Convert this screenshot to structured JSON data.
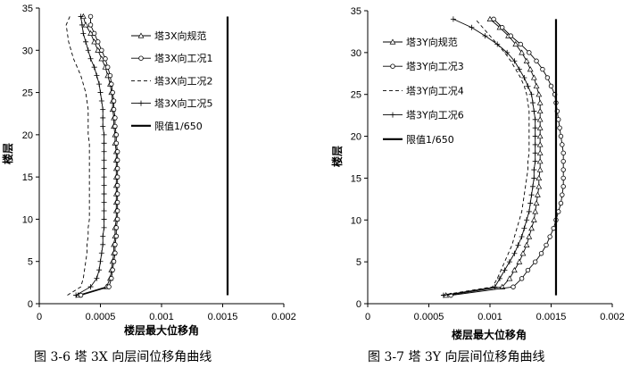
{
  "chart_data": [
    {
      "type": "line",
      "caption": "图 3-6    塔 3X 向层间位移角曲线",
      "xlabel": "楼层最大位移角",
      "ylabel": "楼层",
      "xlim": [
        0,
        0.002
      ],
      "ylim": [
        0,
        35
      ],
      "xticks": [
        "0",
        "0.0005",
        "0.001",
        "0.0015",
        "0.002"
      ],
      "yticks": [
        "0",
        "5",
        "10",
        "15",
        "20",
        "25",
        "30",
        "35"
      ],
      "grid": false,
      "legend_position": "top-right",
      "floors": [
        1,
        2,
        3,
        4,
        5,
        6,
        7,
        8,
        9,
        10,
        11,
        12,
        13,
        14,
        15,
        16,
        17,
        18,
        19,
        20,
        21,
        22,
        23,
        24,
        25,
        26,
        27,
        28,
        29,
        30,
        31,
        32,
        33,
        34
      ],
      "series": [
        {
          "name": "塔3X向规范",
          "marker": "triangle",
          "dash": "solid",
          "values": [
            0.00032,
            0.00055,
            0.00058,
            0.00059,
            0.0006,
            0.00061,
            0.00061,
            0.00062,
            0.00062,
            0.00063,
            0.00063,
            0.00063,
            0.00063,
            0.00063,
            0.00063,
            0.00063,
            0.00063,
            0.00063,
            0.00062,
            0.00062,
            0.00061,
            0.00061,
            0.0006,
            0.0006,
            0.00059,
            0.00058,
            0.00056,
            0.00054,
            0.00051,
            0.00048,
            0.00045,
            0.00042,
            0.00038,
            0.00036
          ]
        },
        {
          "name": "塔3X向工况1",
          "marker": "circle",
          "dash": "solid",
          "values": [
            0.00034,
            0.00057,
            0.00059,
            0.0006,
            0.00061,
            0.00062,
            0.00062,
            0.00063,
            0.00063,
            0.00064,
            0.00064,
            0.00064,
            0.00064,
            0.00064,
            0.00064,
            0.00064,
            0.00064,
            0.00064,
            0.00063,
            0.00063,
            0.00062,
            0.00062,
            0.00061,
            0.00061,
            0.0006,
            0.00059,
            0.00058,
            0.00056,
            0.00054,
            0.00051,
            0.00048,
            0.00045,
            0.00042,
            0.00042
          ]
        },
        {
          "name": "塔3X向工况2",
          "marker": "none",
          "dash": "dashed",
          "values": [
            0.00023,
            0.00034,
            0.00036,
            0.00037,
            0.00038,
            0.00039,
            0.00039,
            0.0004,
            0.0004,
            0.00041,
            0.00041,
            0.00041,
            0.00041,
            0.00041,
            0.00041,
            0.00041,
            0.00041,
            0.00041,
            0.00041,
            0.0004,
            0.0004,
            0.0004,
            0.0004,
            0.00039,
            0.00038,
            0.00036,
            0.00034,
            0.00031,
            0.00028,
            0.00026,
            0.00024,
            0.00023,
            0.00022,
            0.00025
          ]
        },
        {
          "name": "塔3X向工况5",
          "marker": "plus",
          "dash": "solid",
          "values": [
            0.0003,
            0.00042,
            0.00047,
            0.00049,
            0.0005,
            0.00051,
            0.00052,
            0.00052,
            0.00053,
            0.00053,
            0.00053,
            0.00053,
            0.00053,
            0.00053,
            0.00053,
            0.00053,
            0.00053,
            0.00053,
            0.00053,
            0.00053,
            0.00052,
            0.00052,
            0.00052,
            0.00051,
            0.0005,
            0.00049,
            0.00047,
            0.00045,
            0.00042,
            0.0004,
            0.00038,
            0.00036,
            0.00035,
            0.00034
          ]
        },
        {
          "name": "限值1/650",
          "marker": "none",
          "dash": "solid",
          "limit": true,
          "x": 0.00154,
          "yrange": [
            1,
            34
          ]
        }
      ]
    },
    {
      "type": "line",
      "caption": "图 3-7    塔 3Y 向层间位移角曲线",
      "xlabel": "楼层最大位移角",
      "ylabel": "楼层",
      "xlim": [
        0,
        0.002
      ],
      "ylim": [
        0,
        35
      ],
      "xticks": [
        "0",
        "0.0005",
        "0.001",
        "0.0015",
        "0.002"
      ],
      "yticks": [
        "0",
        "5",
        "10",
        "15",
        "20",
        "25",
        "30",
        "35"
      ],
      "grid": false,
      "legend_position": "top-left",
      "floors": [
        1,
        2,
        3,
        4,
        5,
        6,
        7,
        8,
        9,
        10,
        11,
        12,
        13,
        14,
        15,
        16,
        17,
        18,
        19,
        20,
        21,
        22,
        23,
        24,
        25,
        26,
        27,
        28,
        29,
        30,
        31,
        32,
        33,
        34
      ],
      "series": [
        {
          "name": "塔3Y向规范",
          "marker": "triangle",
          "dash": "solid",
          "values": [
            0.00064,
            0.0011,
            0.00116,
            0.0012,
            0.00124,
            0.00127,
            0.0013,
            0.00132,
            0.00134,
            0.00136,
            0.00137,
            0.00138,
            0.00139,
            0.0014,
            0.0014,
            0.00141,
            0.00141,
            0.00141,
            0.00141,
            0.00141,
            0.00141,
            0.00141,
            0.00141,
            0.00141,
            0.0014,
            0.00138,
            0.00136,
            0.00133,
            0.0013,
            0.00126,
            0.00121,
            0.00115,
            0.00108,
            0.001
          ]
        },
        {
          "name": "塔3Y向工况3",
          "marker": "circle",
          "dash": "solid",
          "values": [
            0.00068,
            0.00119,
            0.00126,
            0.00131,
            0.00137,
            0.00142,
            0.00146,
            0.00149,
            0.00152,
            0.00154,
            0.00156,
            0.00158,
            0.00159,
            0.0016,
            0.0016,
            0.0016,
            0.0016,
            0.0016,
            0.00159,
            0.00158,
            0.00157,
            0.00156,
            0.00155,
            0.00154,
            0.00153,
            0.0015,
            0.00147,
            0.00143,
            0.00138,
            0.00132,
            0.00125,
            0.00117,
            0.0011,
            0.00103
          ]
        },
        {
          "name": "塔3Y向工况4",
          "marker": "none",
          "dash": "dashed",
          "values": [
            0.0006,
            0.00102,
            0.00106,
            0.00109,
            0.00112,
            0.00115,
            0.00118,
            0.0012,
            0.00122,
            0.00124,
            0.00126,
            0.00127,
            0.00128,
            0.00129,
            0.0013,
            0.00131,
            0.00131,
            0.00132,
            0.00132,
            0.00132,
            0.00132,
            0.00132,
            0.00132,
            0.00131,
            0.0013,
            0.00128,
            0.00125,
            0.00121,
            0.00117,
            0.00112,
            0.00106,
            0.001,
            0.00094,
            0.00088
          ]
        },
        {
          "name": "塔3Y向工况6",
          "marker": "plus",
          "dash": "solid",
          "values": [
            0.00062,
            0.00104,
            0.00108,
            0.00112,
            0.00116,
            0.0012,
            0.00123,
            0.00126,
            0.00128,
            0.0013,
            0.00132,
            0.00133,
            0.00134,
            0.00135,
            0.00136,
            0.00136,
            0.00137,
            0.00137,
            0.00137,
            0.00137,
            0.00137,
            0.00137,
            0.00136,
            0.00135,
            0.00134,
            0.00131,
            0.00128,
            0.00124,
            0.0012,
            0.00114,
            0.00106,
            0.00096,
            0.00085,
            0.0007
          ]
        },
        {
          "name": "限值1/650",
          "marker": "none",
          "dash": "solid",
          "limit": true,
          "x": 0.00154,
          "yrange": [
            1,
            34
          ]
        }
      ]
    }
  ]
}
